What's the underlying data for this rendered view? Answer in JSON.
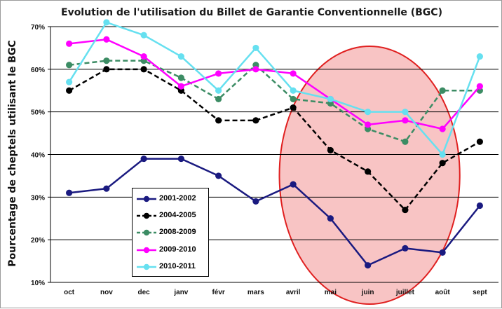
{
  "chart_data": {
    "type": "line",
    "title": "Evolution de l'utilisation  du Billet  de Garantie Conventionnelle (BGC)",
    "ylabel": "Pourcentage de cheptels utilisant  le BGC",
    "xlabel": "",
    "categories": [
      "oct",
      "nov",
      "dec",
      "janv",
      "févr",
      "mars",
      "avril",
      "mai",
      "juin",
      "juillet",
      "août",
      "sept"
    ],
    "ylim": [
      10,
      70
    ],
    "yticks": [
      10,
      20,
      30,
      40,
      50,
      60,
      70
    ],
    "ytick_labels": [
      "10%",
      "20%",
      "30%",
      "40%",
      "50%",
      "60%",
      "70%"
    ],
    "grid": "horizontal",
    "legend_position": "bottom-left",
    "series": [
      {
        "name": "2001-2002",
        "color": "#1a1a80",
        "style": "solid",
        "values": [
          31,
          32,
          39,
          39,
          35,
          29,
          33,
          25,
          14,
          18,
          17,
          28
        ]
      },
      {
        "name": "2004-2005",
        "color": "#000000",
        "style": "dashed",
        "values": [
          55,
          60,
          60,
          55,
          48,
          48,
          51,
          41,
          36,
          27,
          38,
          43
        ]
      },
      {
        "name": "2008-2009",
        "color": "#3c8c64",
        "style": "dashed",
        "values": [
          61,
          62,
          62,
          58,
          53,
          61,
          53,
          52,
          46,
          43,
          55,
          55
        ]
      },
      {
        "name": "2009-2010",
        "color": "#ff00ff",
        "style": "solid",
        "values": [
          66,
          67,
          63,
          56,
          59,
          60,
          59,
          53,
          47,
          48,
          46,
          56
        ]
      },
      {
        "name": "2010-2011",
        "color": "#66e0f0",
        "style": "solid",
        "values": [
          57,
          71,
          68,
          63,
          55,
          65,
          55,
          53,
          50,
          50,
          40,
          63
        ]
      }
    ],
    "annotations": [
      {
        "type": "ellipse",
        "fill": "#f8c4c4",
        "stroke": "#e02020",
        "x_range": [
          "avril",
          "août"
        ],
        "y_range": [
          10,
          70
        ]
      }
    ]
  }
}
